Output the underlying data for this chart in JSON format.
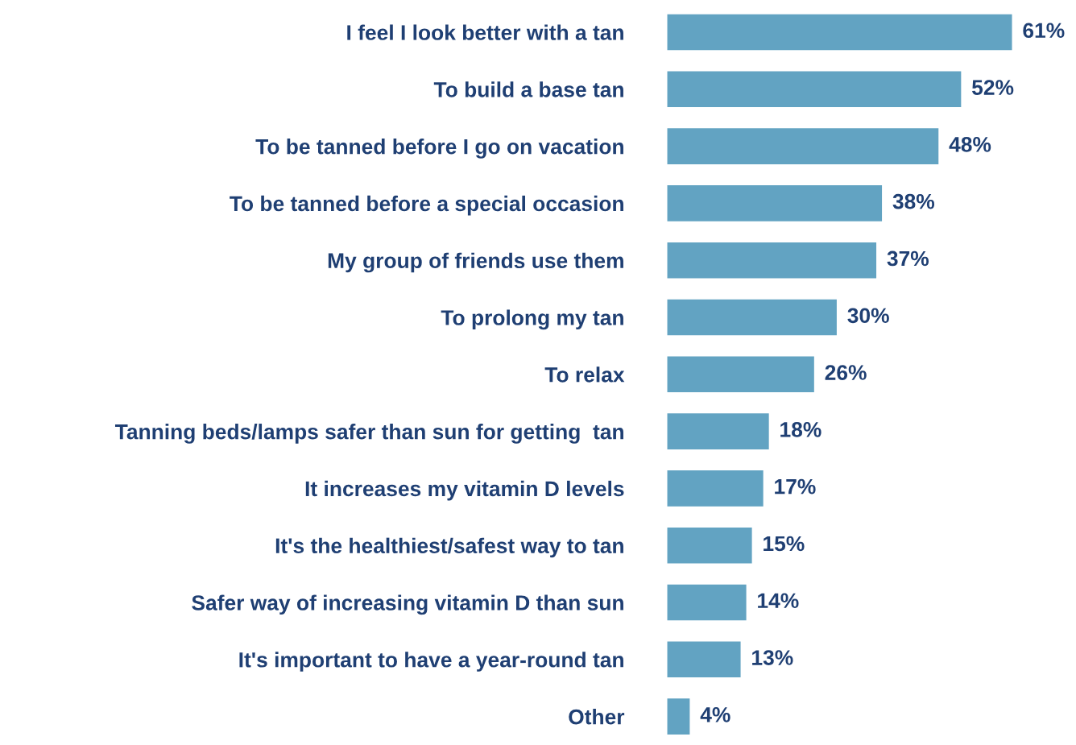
{
  "chart_data": {
    "type": "bar",
    "orientation": "horizontal",
    "categories": [
      "I feel I look better with a tan",
      "To build a base tan",
      "To be tanned before I go on vacation",
      "To be tanned before a special occasion",
      "My group of friends use them",
      "To prolong my tan",
      "To relax",
      "Tanning beds/lamps safer than sun for getting  tan",
      "It increases my vitamin D levels",
      "It's the healthiest/safest way to tan",
      "Safer way of increasing vitamin D than sun",
      "It's important to have a year-round tan",
      "Other"
    ],
    "values": [
      61,
      52,
      48,
      38,
      37,
      30,
      26,
      18,
      17,
      15,
      14,
      13,
      4
    ],
    "value_labels": [
      "61%",
      "52%",
      "48%",
      "38%",
      "37%",
      "30%",
      "26%",
      "18%",
      "17%",
      "15%",
      "14%",
      "13%",
      "4%"
    ],
    "color": "#62a3c2",
    "grid": false,
    "legend": false
  }
}
